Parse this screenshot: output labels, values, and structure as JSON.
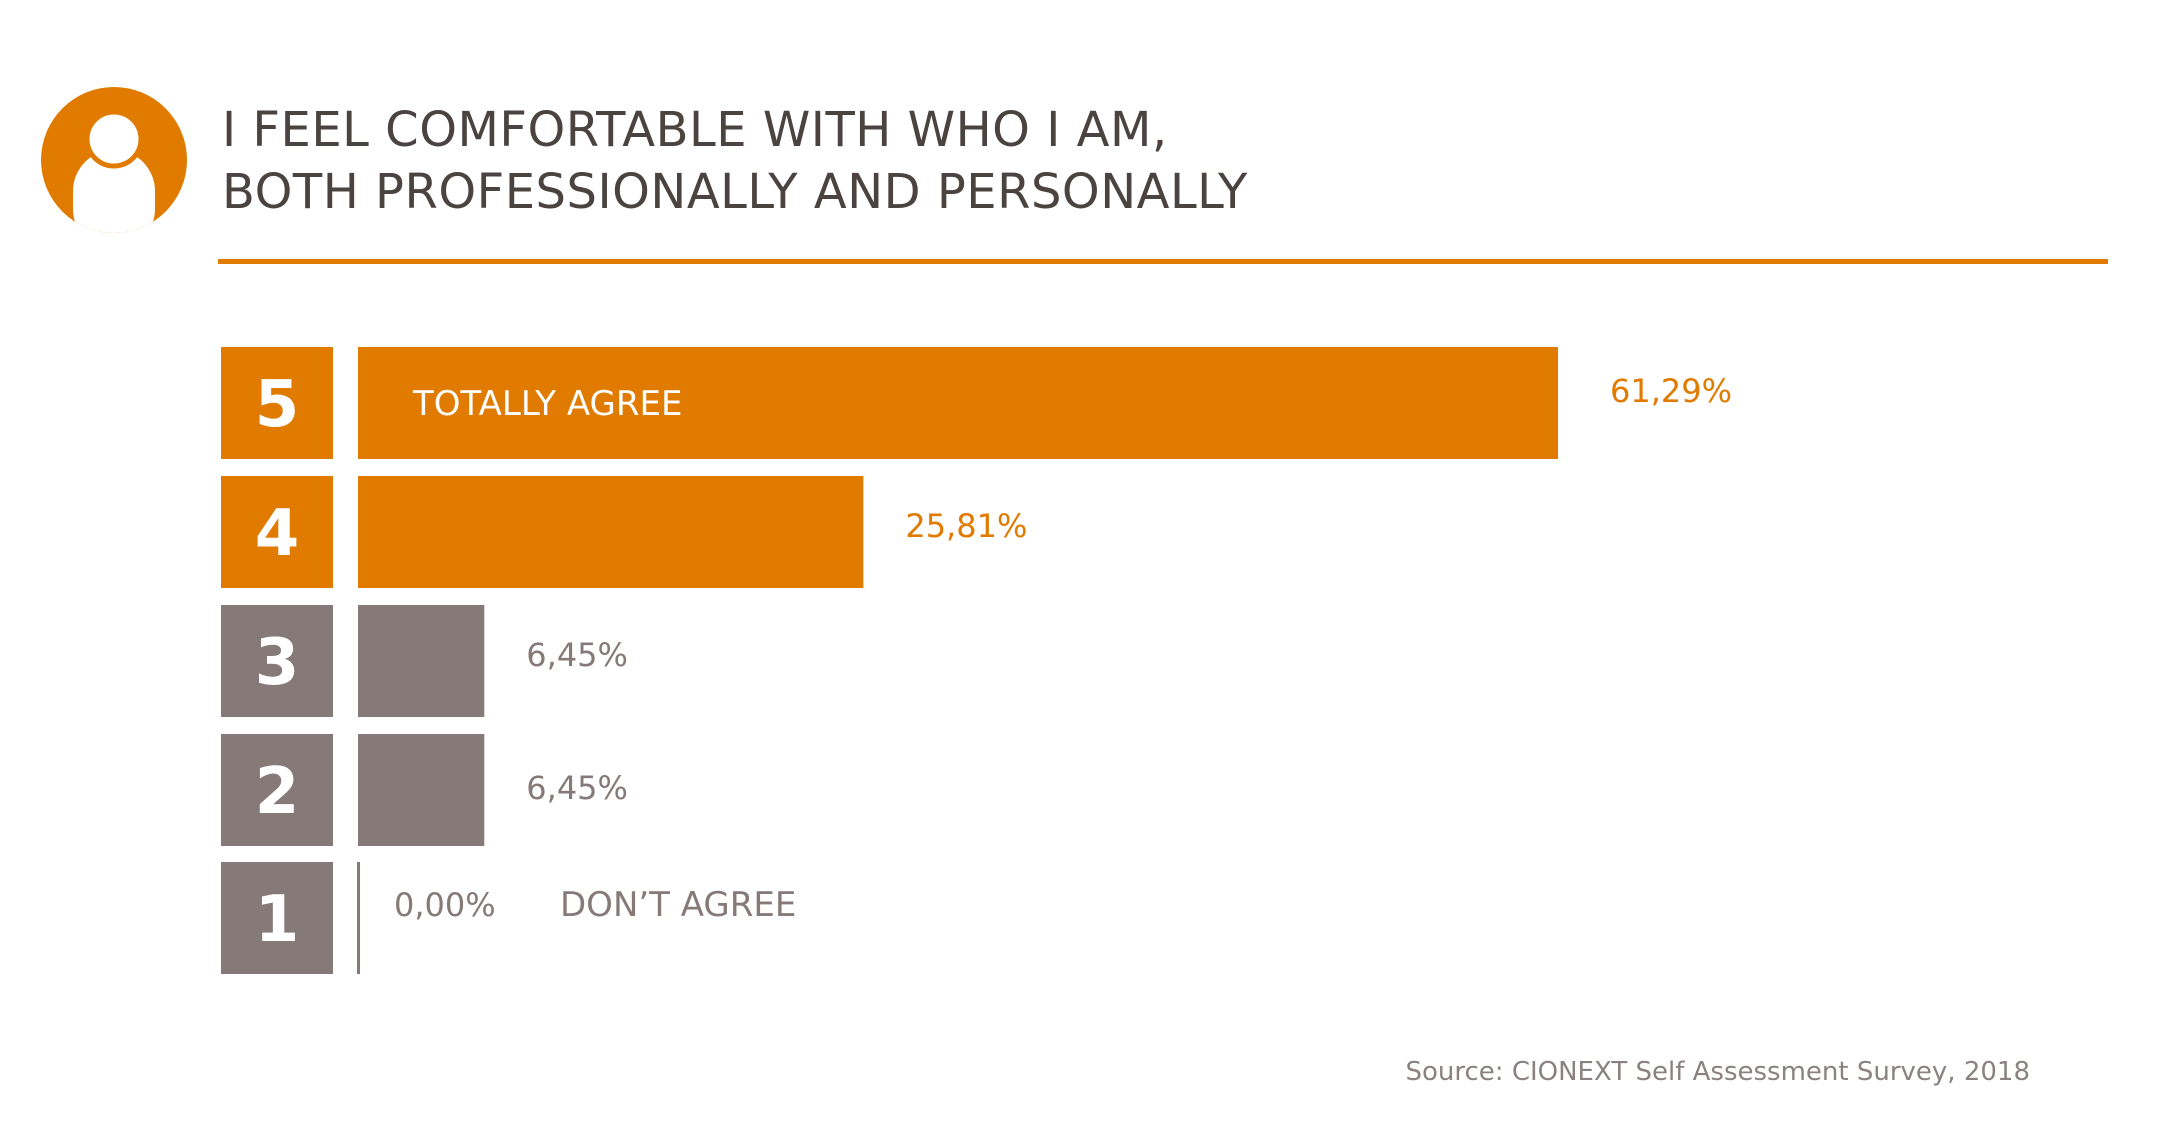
{
  "title_lines": [
    "I FEEL COMFORTABLE WITH WHO I AM,",
    "BOTH PROFESSIONALLY AND PERSONALLY"
  ],
  "source": "Source: CIONEXT Self Assessment Survey, 2018",
  "icon": "person-icon",
  "colors": {
    "accent": "#e07b00",
    "neutral": "#857a77",
    "title": "#4a4340",
    "source": "#8a8280",
    "white": "#ffffff"
  },
  "chart_data": {
    "type": "bar",
    "orientation": "horizontal",
    "title": "I FEEL COMFORTABLE WITH WHO I AM, BOTH PROFESSIONALLY AND PERSONALLY",
    "categories": [
      "5",
      "4",
      "3",
      "2",
      "1"
    ],
    "values": [
      61.29,
      25.81,
      6.45,
      6.45,
      0.0
    ],
    "value_labels": [
      "61,29%",
      "25,81%",
      "6,45%",
      "6,45%",
      "0,00%"
    ],
    "category_labels": [
      "TOTALLY AGREE",
      "",
      "",
      "",
      "DON’T AGREE"
    ],
    "bar_colors": [
      "#e07b00",
      "#e07b00",
      "#857a77",
      "#857a77",
      "#857a77"
    ],
    "xlim": [
      0,
      100
    ],
    "grid": false,
    "legend": "none"
  }
}
